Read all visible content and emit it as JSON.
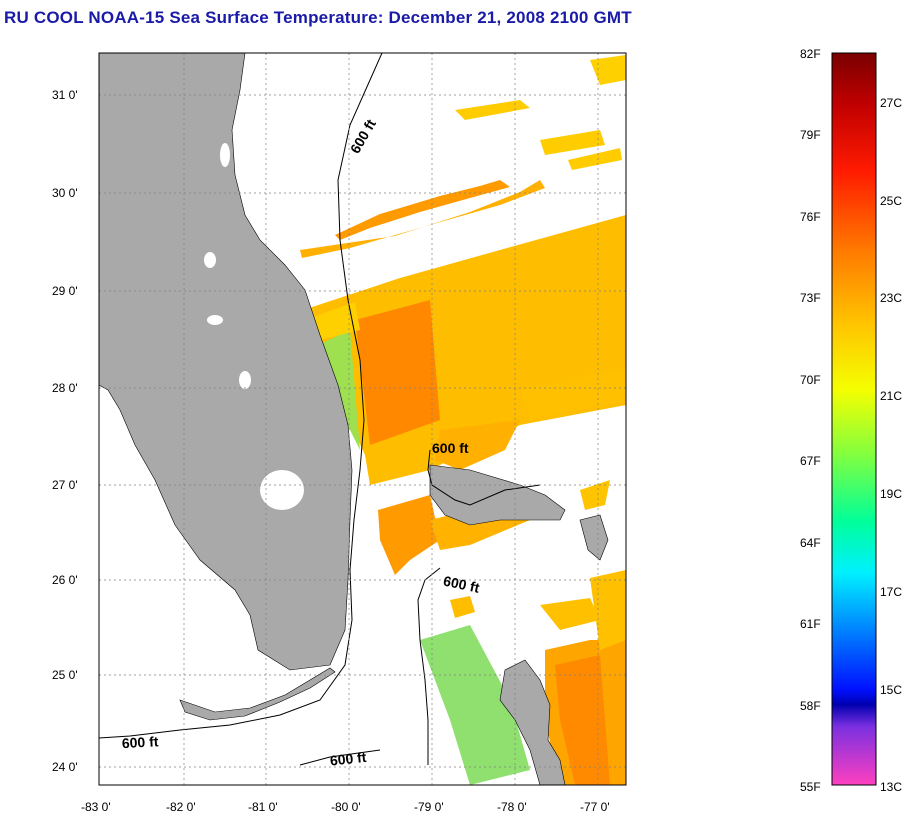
{
  "title": "RU COOL  NOAA-15  Sea Surface Temperature:  December 21, 2008 2100 GMT",
  "map": {
    "lat_labels": [
      "31 0'",
      "30 0'",
      "29 0'",
      "28 0'",
      "27 0'",
      "26 0'",
      "25 0'",
      "24 0'"
    ],
    "lon_labels": [
      "-83 0'",
      "-82 0'",
      "-81 0'",
      "-80 0'",
      "-79 0'",
      "-78 0'",
      "-77 0'"
    ],
    "contour_labels": [
      "600 ft",
      "600 ft",
      "600 ft",
      "600 ft",
      "600 ft"
    ],
    "colors": {
      "land": "#a9a9a9",
      "ocean_nodata": "#ffffff",
      "grid": "#808080"
    }
  },
  "colorbar": {
    "f_labels": [
      "82F",
      "79F",
      "76F",
      "73F",
      "70F",
      "67F",
      "64F",
      "61F",
      "58F",
      "55F"
    ],
    "c_labels": [
      "27C",
      "25C",
      "23C",
      "21C",
      "19C",
      "17C",
      "15C",
      "13C"
    ],
    "gradient_colors": [
      "#7a0000",
      "#e00000",
      "#ff3800",
      "#ff8c00",
      "#ffd000",
      "#f5ff00",
      "#90ff30",
      "#00ff80",
      "#00ffe6",
      "#00a0ff",
      "#0028ff",
      "#0000c0",
      "#8020e0",
      "#e020d0",
      "#ff40c0"
    ]
  }
}
